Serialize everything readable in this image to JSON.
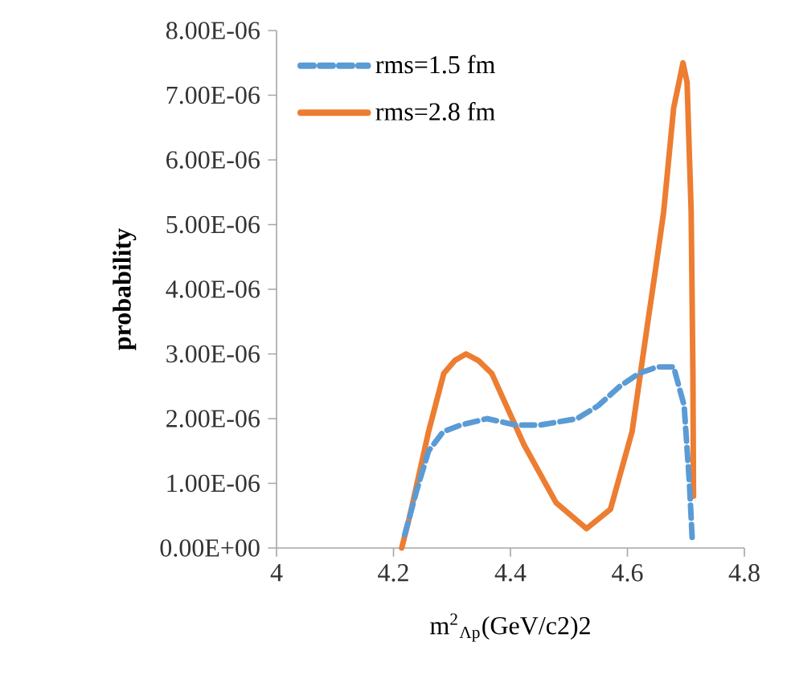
{
  "chart_data": {
    "type": "line",
    "xlabel": "m$^{2}$$_{Λp}$(GeV/c2)2",
    "ylabel": "probability",
    "xlim": [
      4,
      4.8
    ],
    "xticks": [
      4,
      4.2,
      4.4,
      4.6,
      4.8
    ],
    "ylim": [
      0,
      8e-06
    ],
    "yticks": [
      {
        "value": 0,
        "label": "0.00E+00"
      },
      {
        "value": 1e-06,
        "label": "1.00E-06"
      },
      {
        "value": 2e-06,
        "label": "2.00E-06"
      },
      {
        "value": 3e-06,
        "label": "3.00E-06"
      },
      {
        "value": 4e-06,
        "label": "4.00E-06"
      },
      {
        "value": 5e-06,
        "label": "5.00E-06"
      },
      {
        "value": 6e-06,
        "label": "6.00E-06"
      },
      {
        "value": 7e-06,
        "label": "7.00E-06"
      },
      {
        "value": 8e-06,
        "label": "8.00E-06"
      }
    ],
    "grid": false,
    "legend": "top left",
    "marker": "none",
    "series": [
      {
        "name": "rms=1.5 fm",
        "color": "#5b9bd5",
        "line_style": "dashed",
        "x": [
          4.219,
          4.24,
          4.26,
          4.285,
          4.315,
          4.36,
          4.41,
          4.45,
          4.514,
          4.55,
          4.587,
          4.62,
          4.651,
          4.679,
          4.697,
          4.706,
          4.711
        ],
        "values": [
          2e-07,
          9e-07,
          1.5e-06,
          1.8e-06,
          1.9e-06,
          2e-06,
          1.9e-06,
          1.9e-06,
          2e-06,
          2.2e-06,
          2.5e-06,
          2.7e-06,
          2.8e-06,
          2.8e-06,
          2.2e-06,
          1e-06,
          1e-07
        ]
      },
      {
        "name": "rms=2.8 fm",
        "color": "#ed7d31",
        "line_style": "solid",
        "x": [
          4.214,
          4.228,
          4.26,
          4.286,
          4.305,
          4.324,
          4.345,
          4.368,
          4.423,
          4.478,
          4.53,
          4.571,
          4.608,
          4.635,
          4.648,
          4.662,
          4.679,
          4.695,
          4.702,
          4.709,
          4.712,
          4.713
        ],
        "values": [
          0,
          5e-07,
          1.8e-06,
          2.7e-06,
          2.9e-06,
          3e-06,
          2.9e-06,
          2.7e-06,
          1.6e-06,
          7e-07,
          3e-07,
          6e-07,
          1.8e-06,
          3.5e-06,
          4.3e-06,
          5.2e-06,
          6.8e-06,
          7.5e-06,
          7.2e-06,
          5.2e-06,
          2.7e-06,
          8e-07
        ]
      }
    ]
  }
}
